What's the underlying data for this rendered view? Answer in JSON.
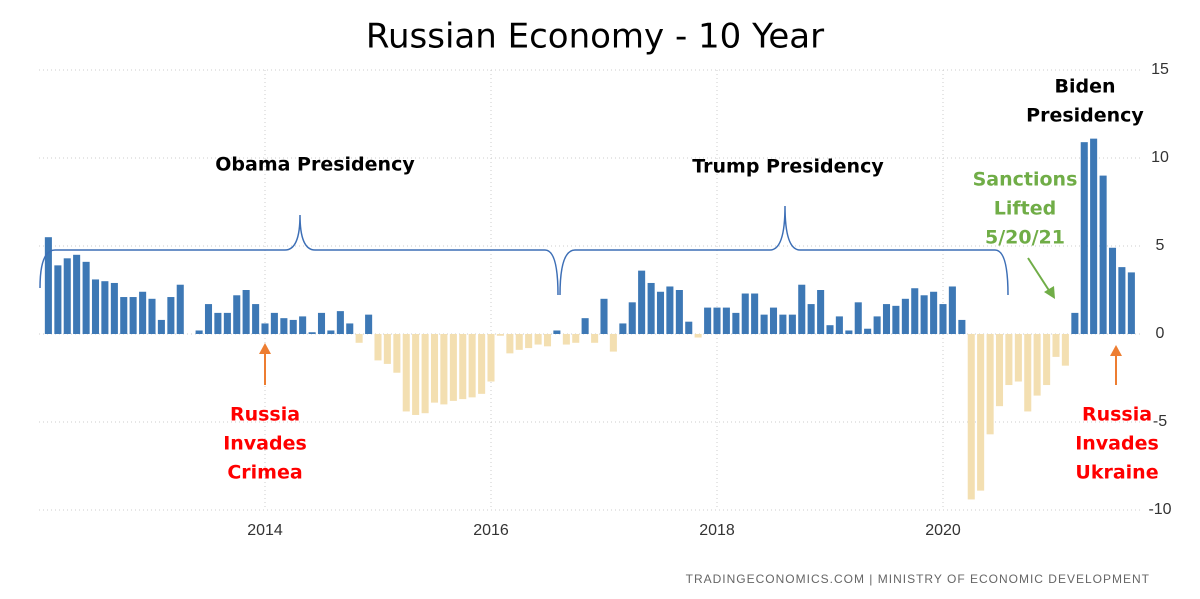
{
  "chart_data": {
    "type": "bar",
    "title": "Russian Economy - 10 Year",
    "source": "TRADINGECONOMICS.COM  |  MINISTRY OF ECONOMIC DEVELOPMENT",
    "x": [
      2012.083,
      2012.167,
      2012.25,
      2012.333,
      2012.417,
      2012.5,
      2012.583,
      2012.667,
      2012.75,
      2012.833,
      2012.917,
      2013.0,
      2013.083,
      2013.167,
      2013.25,
      2013.333,
      2013.417,
      2013.5,
      2013.583,
      2013.667,
      2013.75,
      2013.833,
      2013.917,
      2014.0,
      2014.083,
      2014.167,
      2014.25,
      2014.333,
      2014.417,
      2014.5,
      2014.583,
      2014.667,
      2014.75,
      2014.833,
      2014.917,
      2015.0,
      2015.083,
      2015.167,
      2015.25,
      2015.333,
      2015.417,
      2015.5,
      2015.583,
      2015.667,
      2015.75,
      2015.833,
      2015.917,
      2016.0,
      2016.083,
      2016.167,
      2016.25,
      2016.333,
      2016.417,
      2016.5,
      2016.583,
      2016.667,
      2016.75,
      2016.833,
      2016.917,
      2017.0,
      2017.083,
      2017.167,
      2017.25,
      2017.333,
      2017.417,
      2017.5,
      2017.583,
      2017.667,
      2017.75,
      2017.833,
      2017.917,
      2018.0,
      2018.083,
      2018.167,
      2018.25,
      2018.333,
      2018.417,
      2018.5,
      2018.583,
      2018.667,
      2018.75,
      2018.833,
      2018.917,
      2019.0,
      2019.083,
      2019.167,
      2019.25,
      2019.333,
      2019.417,
      2019.5,
      2019.583,
      2019.667,
      2019.75,
      2019.833,
      2019.917,
      2020.0,
      2020.083,
      2020.167,
      2020.25,
      2020.333,
      2020.417,
      2020.5,
      2020.583,
      2020.667,
      2020.75,
      2020.833,
      2020.917,
      2021.0,
      2021.083,
      2021.167,
      2021.25,
      2021.333,
      2021.417,
      2021.5,
      2021.583,
      2021.667
    ],
    "values": [
      5.5,
      3.9,
      4.3,
      4.5,
      4.1,
      3.1,
      3.0,
      2.9,
      2.1,
      2.1,
      2.4,
      2.0,
      0.8,
      2.1,
      2.8,
      null,
      0.2,
      1.7,
      1.2,
      1.2,
      2.2,
      2.5,
      1.7,
      0.6,
      1.2,
      0.9,
      0.8,
      1.0,
      0.1,
      1.2,
      0.2,
      1.3,
      0.6,
      -0.5,
      1.1,
      -1.5,
      -1.7,
      -2.2,
      -4.4,
      -4.6,
      -4.5,
      -3.9,
      -4.0,
      -3.8,
      -3.7,
      -3.6,
      -3.4,
      -2.7,
      -0.1,
      -1.1,
      -0.9,
      -0.8,
      -0.6,
      -0.7,
      0.2,
      -0.6,
      -0.5,
      0.9,
      -0.5,
      2.0,
      -1.0,
      0.6,
      1.8,
      3.6,
      2.9,
      2.4,
      2.7,
      2.5,
      0.7,
      -0.2,
      1.5,
      1.5,
      1.5,
      1.2,
      2.3,
      2.3,
      1.1,
      1.5,
      1.1,
      1.1,
      2.8,
      1.7,
      2.5,
      0.5,
      1.0,
      0.2,
      1.8,
      0.3,
      1.0,
      1.7,
      1.6,
      2.0,
      2.6,
      2.2,
      2.4,
      1.7,
      2.7,
      0.8,
      -9.4,
      -8.9,
      -5.7,
      -4.1,
      -2.9,
      -2.7,
      -4.4,
      -3.5,
      -2.9,
      -1.3,
      -1.8,
      1.2,
      10.9,
      11.1,
      9.0,
      4.9,
      3.8,
      3.5
    ],
    "color": "#3d78b5",
    "negative_color": "#f3dfb1",
    "xlim": [
      2012,
      2021.75
    ],
    "xticks": [
      2014,
      2016,
      2018,
      2020
    ],
    "ylim": [
      -10,
      15
    ],
    "yticks": [
      -10,
      -5,
      0,
      5,
      10,
      15
    ],
    "grid": true,
    "annotations": [
      {
        "lines": [
          "Obama Presidency"
        ],
        "color": "#000000"
      },
      {
        "lines": [
          "Trump Presidency"
        ],
        "color": "#000000"
      },
      {
        "lines": [
          "Biden",
          "Presidency"
        ],
        "color": "#000000"
      },
      {
        "lines": [
          "Sanctions",
          "Lifted",
          "5/20/21"
        ],
        "color": "#70ad47"
      },
      {
        "lines": [
          "Russia",
          "Invades",
          "Crimea"
        ],
        "color": "#ff0000"
      },
      {
        "lines": [
          "Russia",
          "Invades",
          "Ukraine"
        ],
        "color": "#ff0000"
      }
    ]
  }
}
